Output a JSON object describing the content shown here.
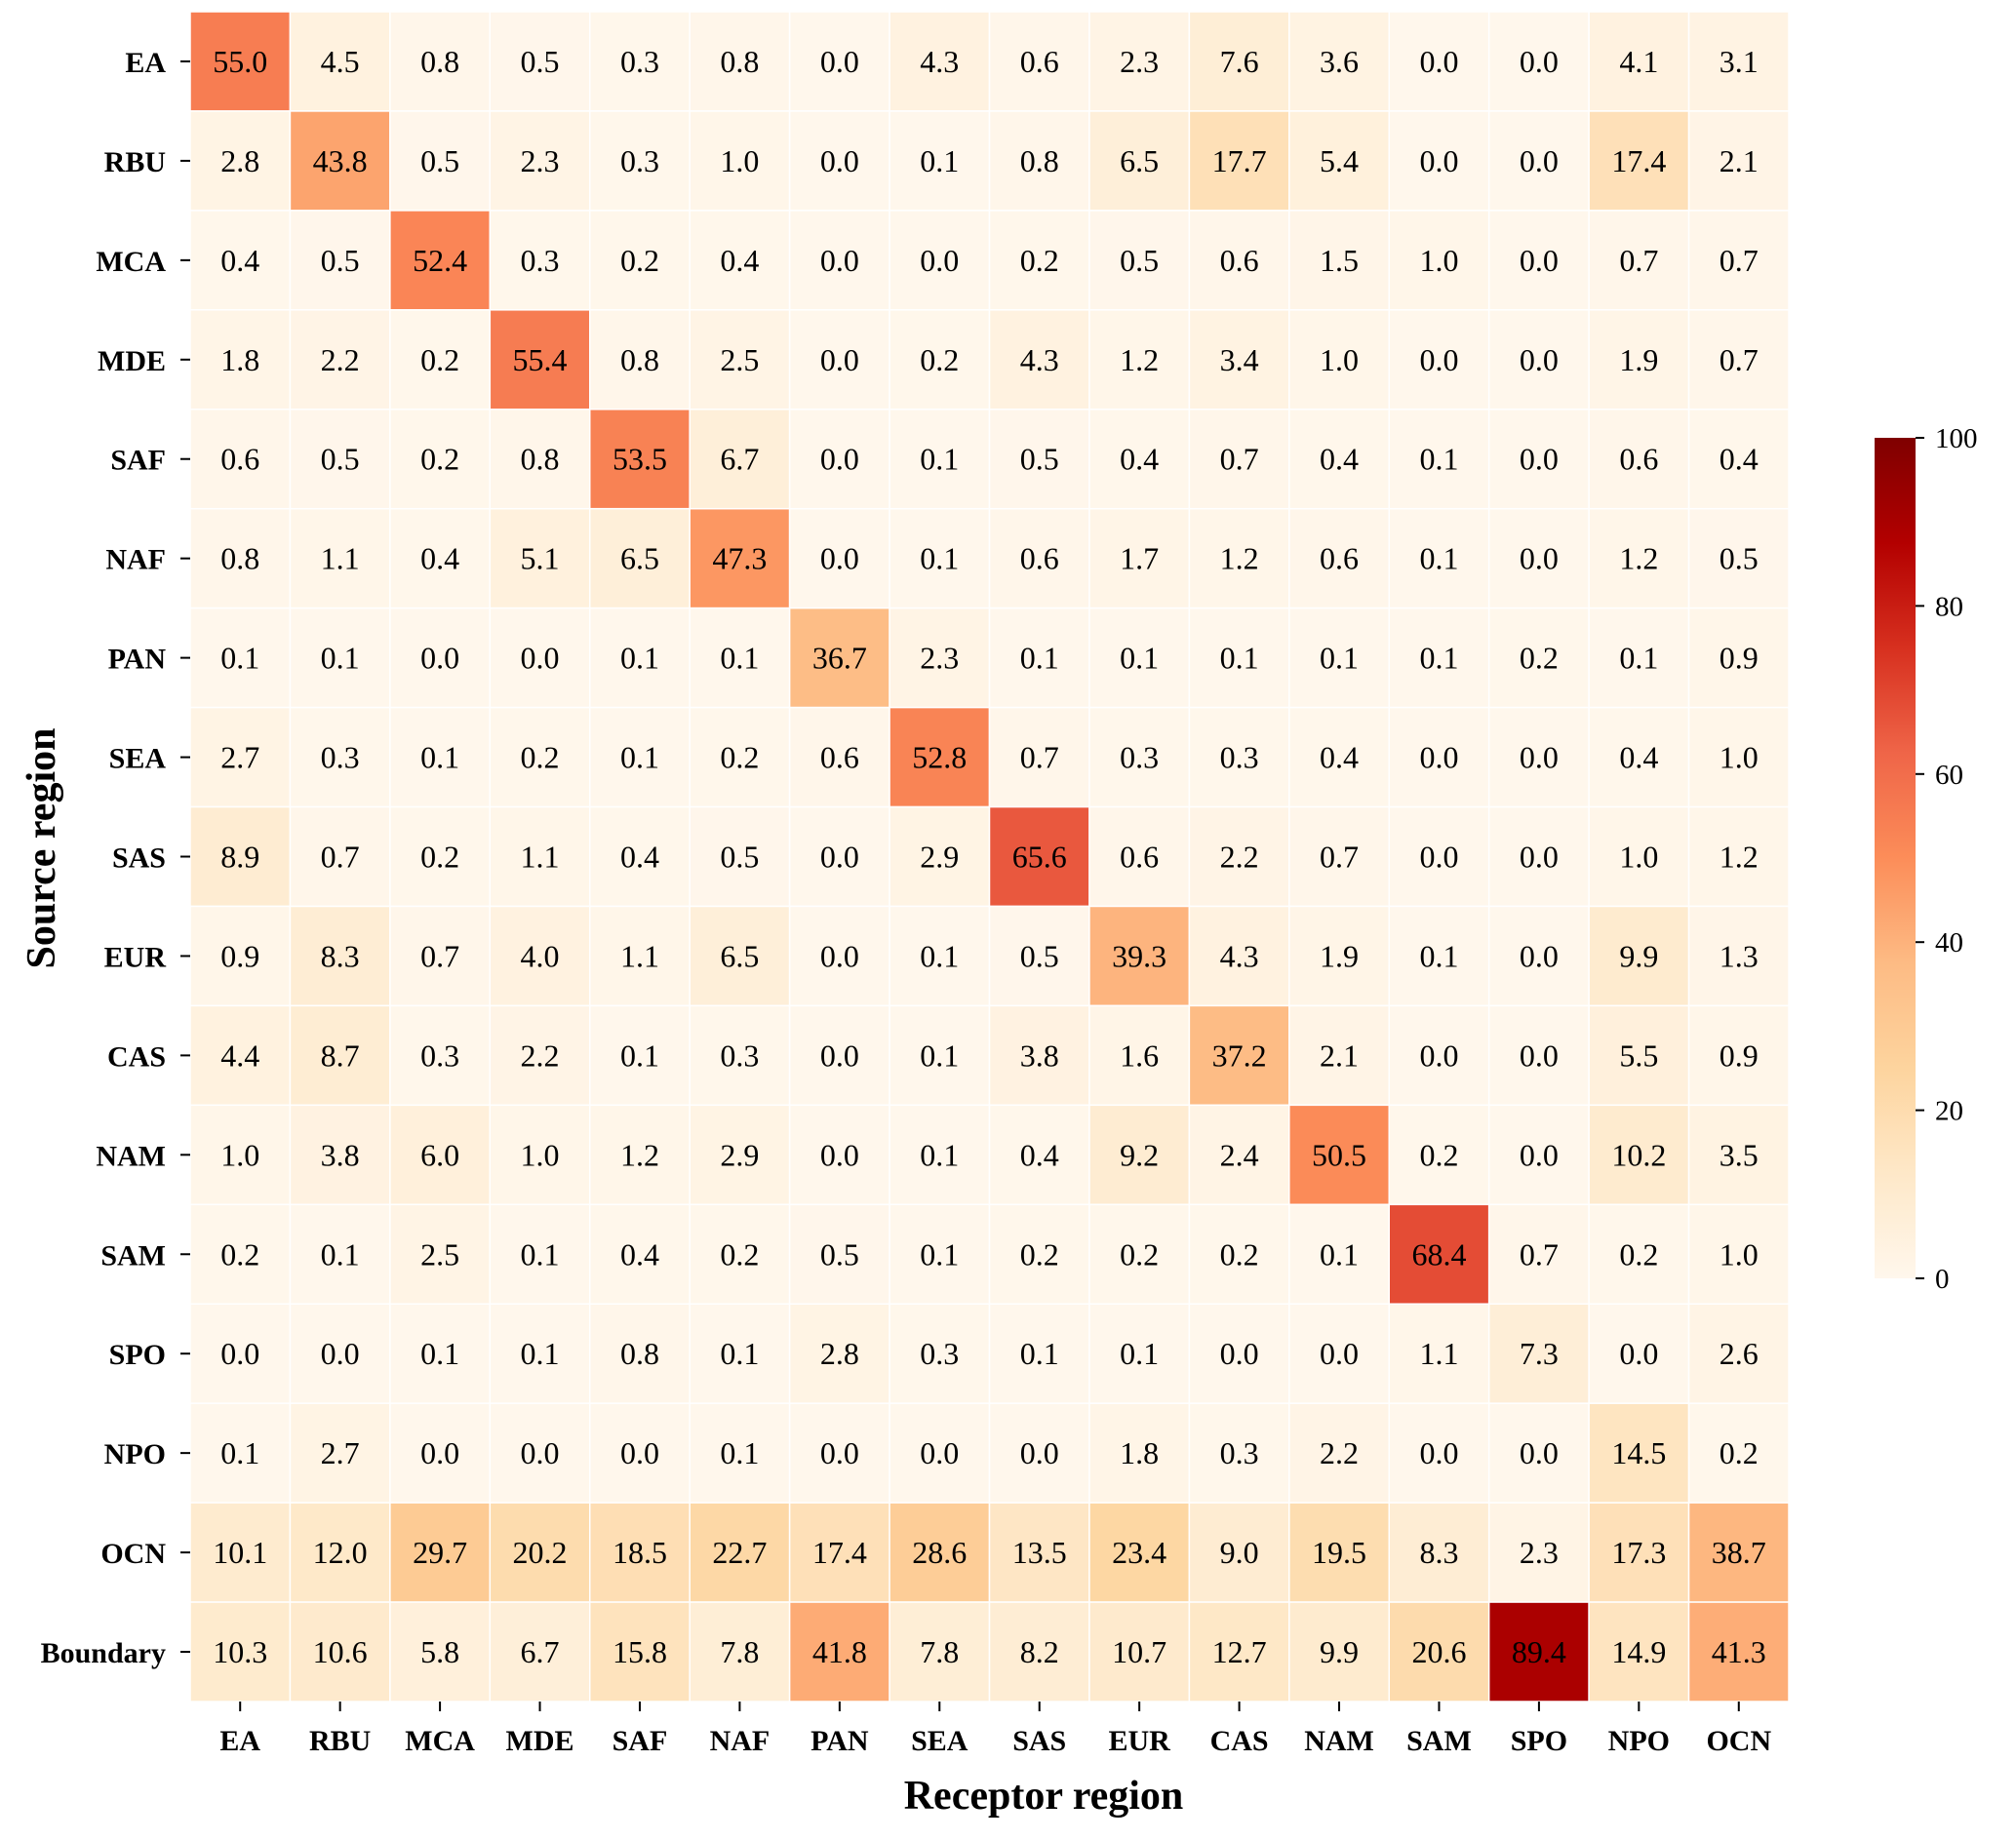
{
  "chart_data": {
    "type": "heatmap",
    "xlabel": "Receptor region",
    "ylabel": "Source region",
    "x_categories": [
      "EA",
      "RBU",
      "MCA",
      "MDE",
      "SAF",
      "NAF",
      "PAN",
      "SEA",
      "SAS",
      "EUR",
      "CAS",
      "NAM",
      "SAM",
      "SPO",
      "NPO",
      "OCN"
    ],
    "y_categories": [
      "EA",
      "RBU",
      "MCA",
      "MDE",
      "SAF",
      "NAF",
      "PAN",
      "SEA",
      "SAS",
      "EUR",
      "CAS",
      "NAM",
      "SAM",
      "SPO",
      "NPO",
      "OCN",
      "Boundary"
    ],
    "values": [
      [
        55.0,
        4.5,
        0.8,
        0.5,
        0.3,
        0.8,
        0.0,
        4.3,
        0.6,
        2.3,
        7.6,
        3.6,
        0.0,
        0.0,
        4.1,
        3.1
      ],
      [
        2.8,
        43.8,
        0.5,
        2.3,
        0.3,
        1.0,
        0.0,
        0.1,
        0.8,
        6.5,
        17.7,
        5.4,
        0.0,
        0.0,
        17.4,
        2.1
      ],
      [
        0.4,
        0.5,
        52.4,
        0.3,
        0.2,
        0.4,
        0.0,
        0.0,
        0.2,
        0.5,
        0.6,
        1.5,
        1.0,
        0.0,
        0.7,
        0.7
      ],
      [
        1.8,
        2.2,
        0.2,
        55.4,
        0.8,
        2.5,
        0.0,
        0.2,
        4.3,
        1.2,
        3.4,
        1.0,
        0.0,
        0.0,
        1.9,
        0.7
      ],
      [
        0.6,
        0.5,
        0.2,
        0.8,
        53.5,
        6.7,
        0.0,
        0.1,
        0.5,
        0.4,
        0.7,
        0.4,
        0.1,
        0.0,
        0.6,
        0.4
      ],
      [
        0.8,
        1.1,
        0.4,
        5.1,
        6.5,
        47.3,
        0.0,
        0.1,
        0.6,
        1.7,
        1.2,
        0.6,
        0.1,
        0.0,
        1.2,
        0.5
      ],
      [
        0.1,
        0.1,
        0.0,
        0.0,
        0.1,
        0.1,
        36.7,
        2.3,
        0.1,
        0.1,
        0.1,
        0.1,
        0.1,
        0.2,
        0.1,
        0.9
      ],
      [
        2.7,
        0.3,
        0.1,
        0.2,
        0.1,
        0.2,
        0.6,
        52.8,
        0.7,
        0.3,
        0.3,
        0.4,
        0.0,
        0.0,
        0.4,
        1.0
      ],
      [
        8.9,
        0.7,
        0.2,
        1.1,
        0.4,
        0.5,
        0.0,
        2.9,
        65.6,
        0.6,
        2.2,
        0.7,
        0.0,
        0.0,
        1.0,
        1.2
      ],
      [
        0.9,
        8.3,
        0.7,
        4.0,
        1.1,
        6.5,
        0.0,
        0.1,
        0.5,
        39.3,
        4.3,
        1.9,
        0.1,
        0.0,
        9.9,
        1.3
      ],
      [
        4.4,
        8.7,
        0.3,
        2.2,
        0.1,
        0.3,
        0.0,
        0.1,
        3.8,
        1.6,
        37.2,
        2.1,
        0.0,
        0.0,
        5.5,
        0.9
      ],
      [
        1.0,
        3.8,
        6.0,
        1.0,
        1.2,
        2.9,
        0.0,
        0.1,
        0.4,
        9.2,
        2.4,
        50.5,
        0.2,
        0.0,
        10.2,
        3.5
      ],
      [
        0.2,
        0.1,
        2.5,
        0.1,
        0.4,
        0.2,
        0.5,
        0.1,
        0.2,
        0.2,
        0.2,
        0.1,
        68.4,
        0.7,
        0.2,
        1.0
      ],
      [
        0.0,
        0.0,
        0.1,
        0.1,
        0.8,
        0.1,
        2.8,
        0.3,
        0.1,
        0.1,
        0.0,
        0.0,
        1.1,
        7.3,
        0.0,
        2.6
      ],
      [
        0.1,
        2.7,
        0.0,
        0.0,
        0.0,
        0.1,
        0.0,
        0.0,
        0.0,
        1.8,
        0.3,
        2.2,
        0.0,
        0.0,
        14.5,
        0.2
      ],
      [
        10.1,
        12.0,
        29.7,
        20.2,
        18.5,
        22.7,
        17.4,
        28.6,
        13.5,
        23.4,
        9.0,
        19.5,
        8.3,
        2.3,
        17.3,
        38.7
      ],
      [
        10.3,
        10.6,
        5.8,
        6.7,
        15.8,
        7.8,
        41.8,
        7.8,
        8.2,
        10.7,
        12.7,
        9.9,
        20.6,
        89.4,
        14.9,
        41.3
      ]
    ],
    "color_scale": {
      "min": 0,
      "max": 100,
      "ticks": [
        "0",
        "20",
        "40",
        "60",
        "80",
        "100"
      ],
      "colormap": "OrRd",
      "stops": [
        "#fff7ec",
        "#fee8c8",
        "#fdd49e",
        "#fdbb84",
        "#fc8d59",
        "#ef6548",
        "#d7301f",
        "#b30000",
        "#7f0000"
      ]
    },
    "grid_line_color": "#ffffff"
  }
}
